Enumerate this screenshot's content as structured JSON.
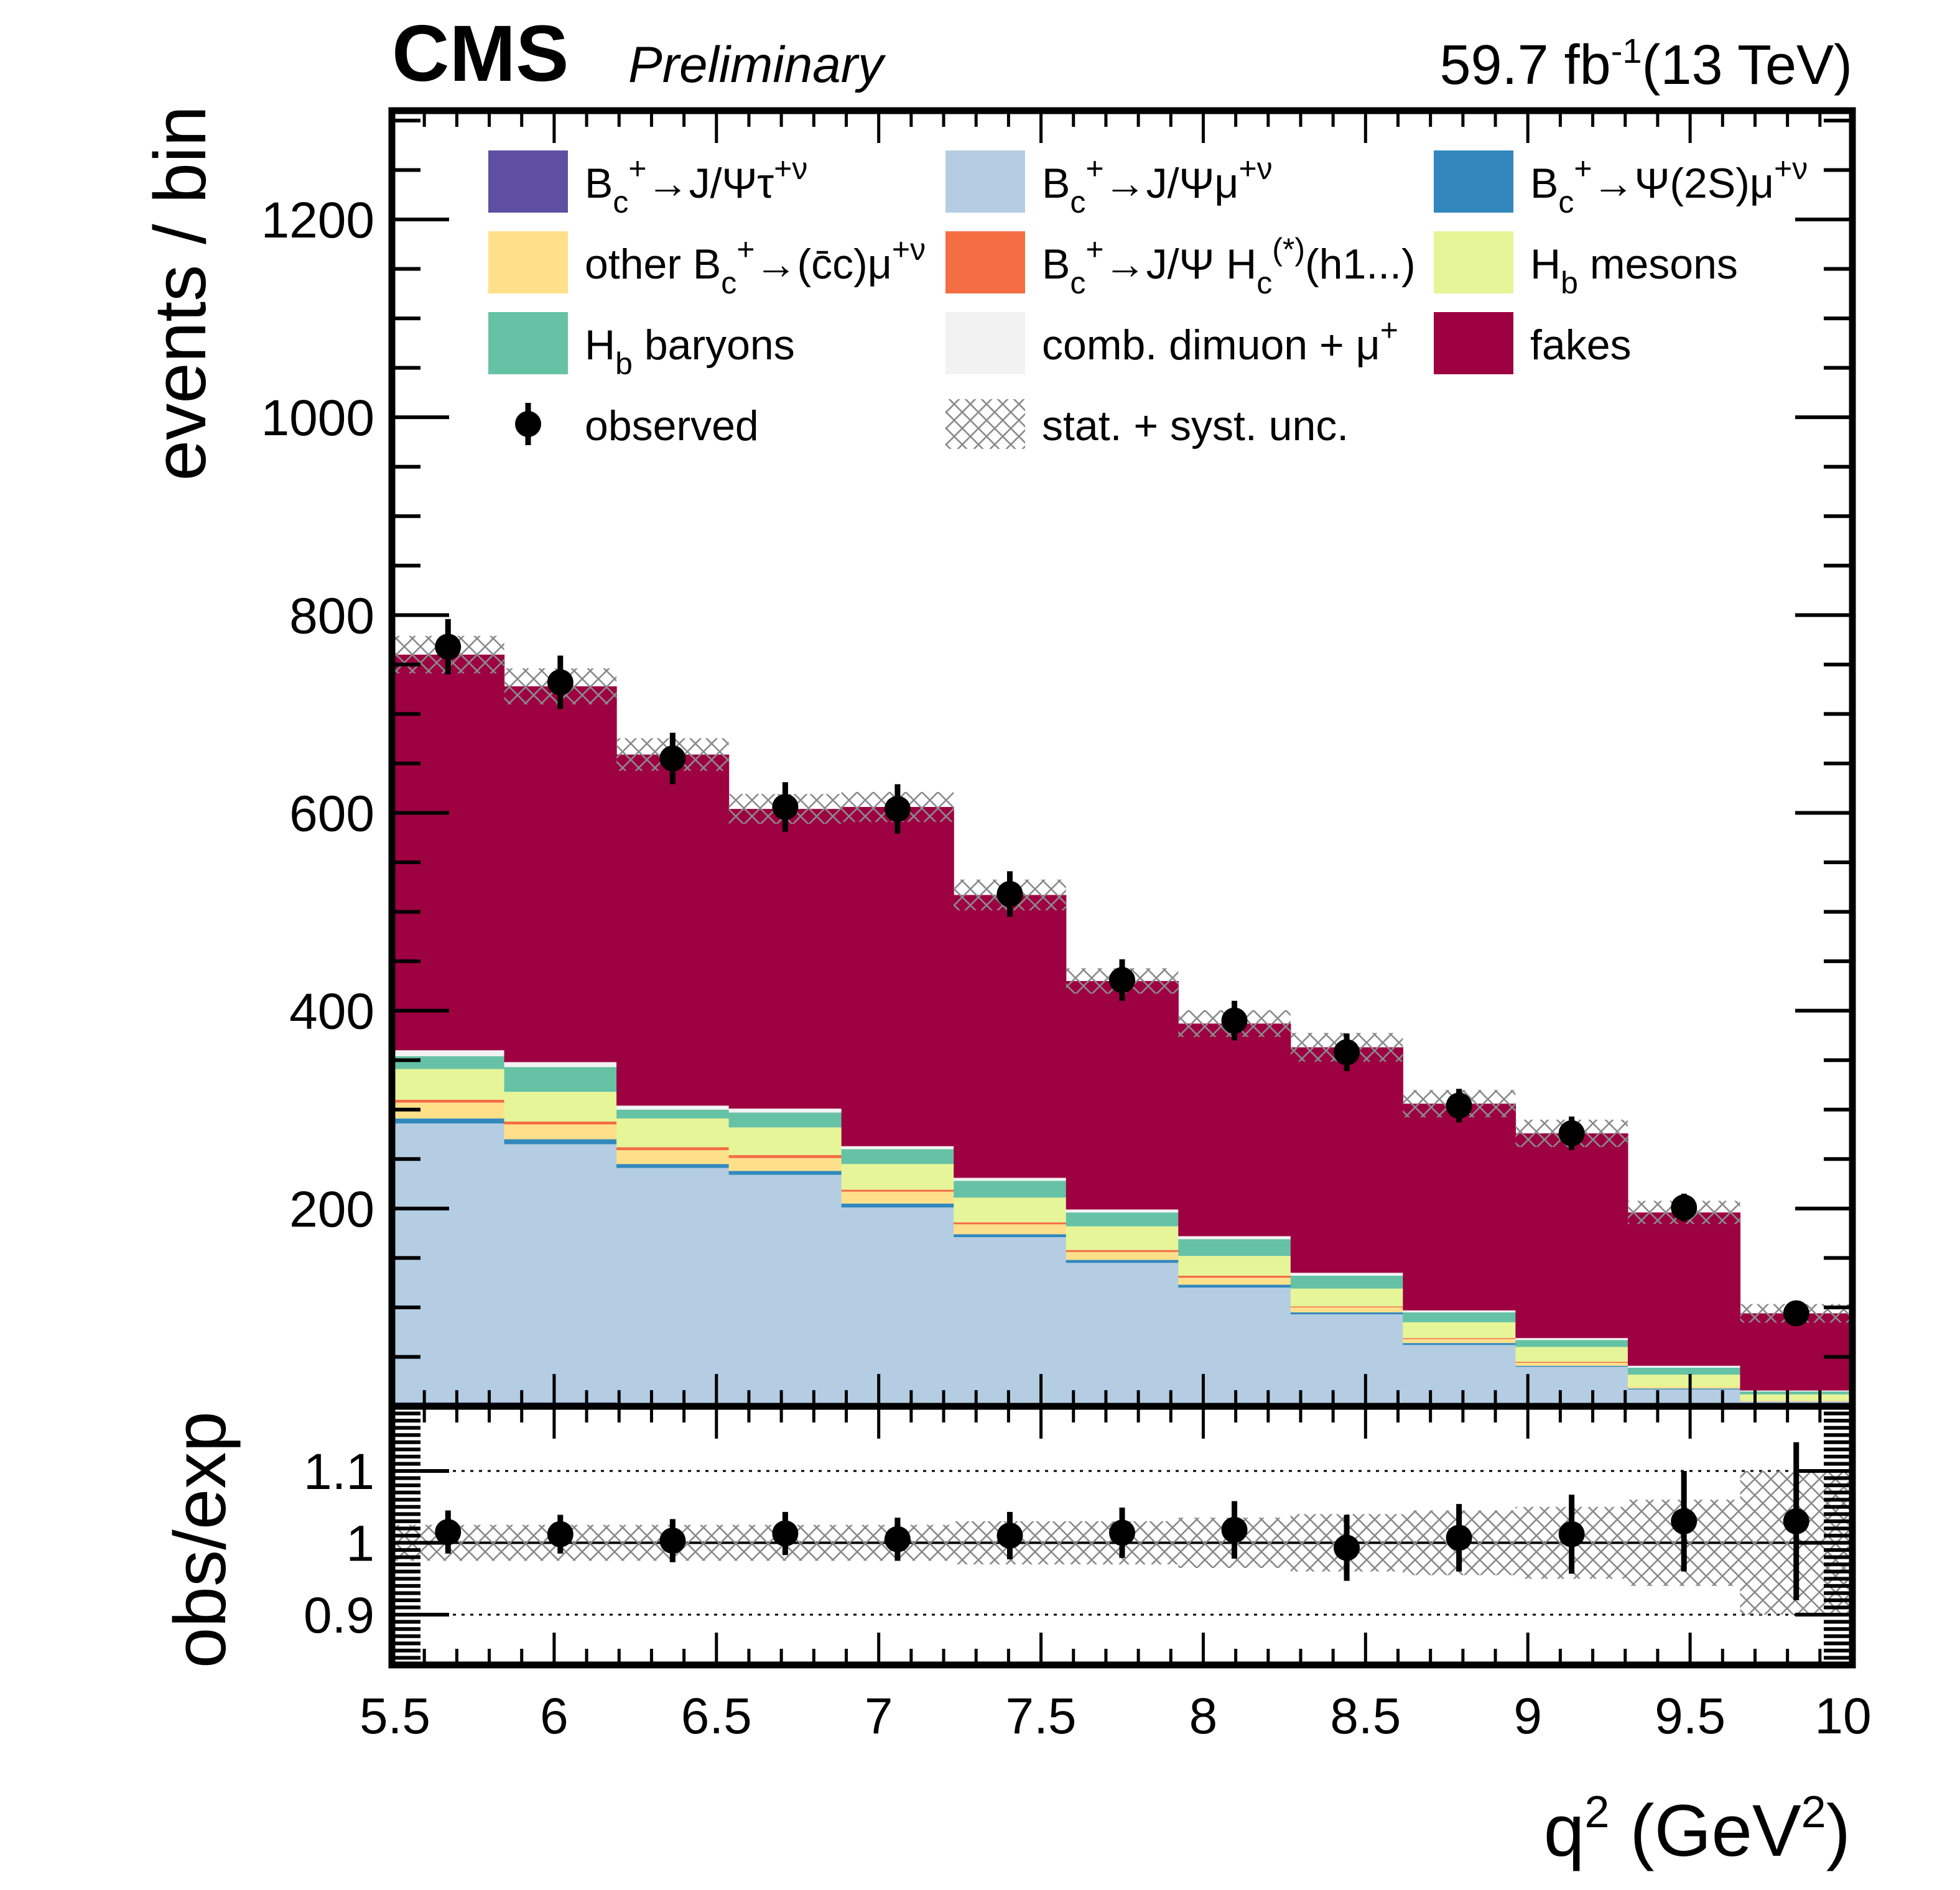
{
  "header": {
    "experiment": "CMS",
    "status": "Preliminary",
    "lumi_value": "59.7 fb",
    "lumi_exp": "-1",
    "energy": "(13 TeV)"
  },
  "chart_data": [
    {
      "type": "bar",
      "stacked": true,
      "ylabel": "events / bin",
      "xlim": [
        5.5,
        10
      ],
      "ylim": [
        0,
        1310
      ],
      "yticks": [
        200,
        400,
        600,
        800,
        1000,
        1200
      ],
      "bin_edges": [
        5.5,
        5.846,
        6.192,
        6.538,
        6.885,
        7.231,
        7.577,
        7.923,
        8.269,
        8.615,
        8.962,
        9.308,
        9.654,
        10.0
      ],
      "series": [
        {
          "key": "tau",
          "name": "B_c^+→J/Ψτ^+ν",
          "color": "#5e4fa2",
          "values": [
            4,
            4,
            3,
            3,
            3,
            2,
            2,
            2,
            2,
            1,
            1,
            1,
            1
          ]
        },
        {
          "key": "mu",
          "name": "B_c^+→J/Ψμ^+ν",
          "color": "#b4cde2",
          "values": [
            282,
            261,
            238,
            231,
            198,
            169,
            143,
            118,
            91,
            61,
            39,
            16,
            4
          ]
        },
        {
          "key": "psi2s",
          "name": "B_c^+→Ψ(2S)μ^+ν",
          "color": "#3288bd",
          "values": [
            5,
            5,
            4,
            4,
            4,
            3,
            3,
            3,
            2,
            2,
            1,
            1,
            0
          ]
        },
        {
          "key": "other",
          "name": "other B_c^+→(c̄c)μ^+ν",
          "color": "#fee08b",
          "values": [
            16,
            15,
            14,
            13,
            12,
            10,
            8,
            7,
            5,
            4,
            3,
            2,
            1
          ]
        },
        {
          "key": "hc",
          "name": "B_c^+→J/Ψ H_c^(*)(h1...)",
          "color": "#f46d43",
          "values": [
            3,
            3,
            3,
            3,
            2,
            2,
            2,
            2,
            1,
            1,
            1,
            0,
            0
          ]
        },
        {
          "key": "hbmes",
          "name": "H_b mesons",
          "color": "#e6f598",
          "values": [
            31,
            30,
            29,
            28,
            26,
            25,
            24,
            20,
            18,
            16,
            15,
            12,
            6
          ]
        },
        {
          "key": "hbbar",
          "name": "H_b baryons",
          "color": "#66c2a5",
          "values": [
            13,
            25,
            9,
            15,
            15,
            17,
            14,
            17,
            13,
            10,
            7,
            7,
            3
          ]
        },
        {
          "key": "comb",
          "name": "comb. dimuon + μ^+",
          "color": "#f2f2f2",
          "values": [
            6,
            5,
            4,
            4,
            3,
            3,
            3,
            3,
            3,
            2,
            2,
            2,
            1
          ]
        },
        {
          "key": "fakes",
          "name": "fakes",
          "color": "#9e0142",
          "values": [
            400,
            380,
            355,
            303,
            343,
            286,
            231,
            215,
            228,
            209,
            207,
            155,
            78
          ]
        }
      ],
      "observed": {
        "name": "observed",
        "x": [
          5.673,
          6.019,
          6.365,
          6.712,
          7.058,
          7.404,
          7.75,
          8.096,
          8.442,
          8.788,
          9.135,
          9.481,
          9.827
        ],
        "y": [
          768,
          732,
          655,
          606,
          604,
          518,
          431,
          390,
          358,
          304,
          276,
          201,
          94
        ],
        "err": [
          28,
          27,
          26,
          25,
          25,
          23,
          21,
          20,
          19,
          17,
          17,
          14,
          10
        ]
      },
      "unc_band": {
        "name": "stat. + syst. unc.",
        "rel": [
          0.025,
          0.025,
          0.025,
          0.025,
          0.025,
          0.03,
          0.03,
          0.035,
          0.04,
          0.045,
          0.05,
          0.06,
          0.1
        ]
      },
      "legend": {
        "columns": 3,
        "rows": [
          [
            "tau",
            "mu",
            "psi2s"
          ],
          [
            "other",
            "hc",
            "hbmes"
          ],
          [
            "hbbar",
            "comb",
            "fakes"
          ],
          [
            "observed",
            "unc",
            ""
          ]
        ]
      }
    },
    {
      "type": "scatter",
      "ylabel": "obs/exp",
      "xlabel": "q² (GeV²)",
      "xlim": [
        5.5,
        10
      ],
      "ylim": [
        0.83,
        1.19
      ],
      "yticks": [
        0.9,
        1,
        1.1
      ],
      "ytick_labels": [
        "0.9",
        "1",
        "1.1"
      ],
      "xticks": [
        5.5,
        6,
        6.5,
        7,
        7.5,
        8,
        8.5,
        9,
        9.5,
        10
      ],
      "xtick_labels": [
        "5.5",
        "6",
        "6.5",
        "7",
        "7.5",
        "8",
        "8.5",
        "9",
        "9.5",
        "10"
      ],
      "reference_lines": [
        0.9,
        1.0,
        1.1
      ],
      "x": [
        5.673,
        6.019,
        6.365,
        6.712,
        7.058,
        7.404,
        7.75,
        8.096,
        8.442,
        8.788,
        9.135,
        9.481,
        9.827
      ],
      "y": [
        1.015,
        1.012,
        1.003,
        1.013,
        1.005,
        1.01,
        1.014,
        1.018,
        0.993,
        1.007,
        1.012,
        1.03,
        1.03
      ],
      "err": [
        0.03,
        0.027,
        0.03,
        0.03,
        0.03,
        0.033,
        0.035,
        0.04,
        0.046,
        0.047,
        0.055,
        0.07,
        0.11
      ],
      "unc_band_halfwidth": [
        0.025,
        0.025,
        0.025,
        0.025,
        0.025,
        0.03,
        0.03,
        0.035,
        0.04,
        0.045,
        0.05,
        0.06,
        0.1
      ]
    }
  ]
}
